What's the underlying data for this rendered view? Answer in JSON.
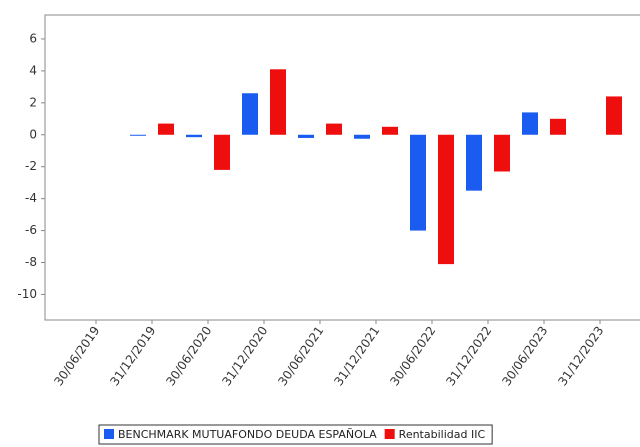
{
  "chart_data": {
    "type": "bar",
    "categories": [
      "30/06/2019",
      "31/12/2019",
      "30/06/2020",
      "31/12/2020",
      "30/06/2021",
      "31/12/2021",
      "30/06/2022",
      "31/12/2022",
      "30/06/2023",
      "31/12/2023"
    ],
    "series": [
      {
        "name": "BENCHMARK MUTUAFONDO DEUDA ESPAÑOLA",
        "color": "#1a5cf0",
        "values": [
          null,
          -0.05,
          -0.15,
          2.6,
          -0.2,
          -0.25,
          -6.0,
          -3.5,
          1.4,
          null
        ]
      },
      {
        "name": "Rentabilidad IIC",
        "color": "#ee0e0e",
        "values": [
          null,
          0.7,
          -2.2,
          4.1,
          0.7,
          0.5,
          -8.1,
          -2.3,
          1.0,
          2.4
        ]
      }
    ],
    "ylim": [
      -11.6,
      7.5
    ],
    "yticks": [
      -10,
      -8,
      -6,
      -4,
      -2,
      0,
      2,
      4,
      6
    ],
    "grid": false
  }
}
